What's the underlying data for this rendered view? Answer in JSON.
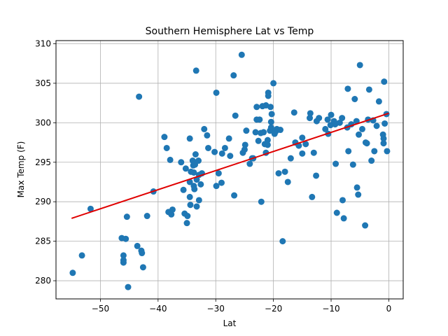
{
  "chart_data": {
    "type": "scatter",
    "title": "Southern Hemisphere Lat vs Temp",
    "xlabel": "Lat",
    "ylabel": "Max Temp (F)",
    "xlim": [
      -57.7,
      2.5
    ],
    "ylim": [
      277.7,
      310.4
    ],
    "xticks": [
      -50,
      -40,
      -30,
      -20,
      -10,
      0
    ],
    "yticks": [
      280,
      285,
      290,
      295,
      300,
      305,
      310
    ],
    "grid": true,
    "colors": {
      "points": "#1f77b4",
      "regression": "#e00000"
    },
    "regression": {
      "x": [
        -55,
        0
      ],
      "y": [
        287.9,
        301.2
      ]
    },
    "points": [
      [
        -54.8,
        281.0
      ],
      [
        -53.2,
        283.2
      ],
      [
        -51.7,
        289.1
      ],
      [
        -46.3,
        285.4
      ],
      [
        -46.0,
        283.2
      ],
      [
        -46.0,
        282.6
      ],
      [
        -46.0,
        282.3
      ],
      [
        -45.6,
        285.3
      ],
      [
        -45.4,
        288.1
      ],
      [
        -45.2,
        279.2
      ],
      [
        -43.6,
        284.4
      ],
      [
        -43.3,
        303.3
      ],
      [
        -42.9,
        283.8
      ],
      [
        -42.8,
        283.5
      ],
      [
        -42.6,
        281.7
      ],
      [
        -41.9,
        288.2
      ],
      [
        -40.8,
        291.3
      ],
      [
        -38.9,
        298.2
      ],
      [
        -38.5,
        296.8
      ],
      [
        -38.2,
        288.7
      ],
      [
        -37.9,
        295.3
      ],
      [
        -37.7,
        288.4
      ],
      [
        -37.5,
        289.0
      ],
      [
        -36.0,
        295.0
      ],
      [
        -35.6,
        291.5
      ],
      [
        -35.4,
        288.5
      ],
      [
        -35.2,
        294.2
      ],
      [
        -35.0,
        287.3
      ],
      [
        -34.9,
        288.2
      ],
      [
        -34.5,
        298.0
      ],
      [
        -34.5,
        292.5
      ],
      [
        -34.5,
        290.6
      ],
      [
        -34.4,
        289.6
      ],
      [
        -34.3,
        293.8
      ],
      [
        -34.0,
        295.2
      ],
      [
        -33.9,
        294.6
      ],
      [
        -33.8,
        293.7
      ],
      [
        -33.8,
        292.0
      ],
      [
        -33.7,
        291.6
      ],
      [
        -33.6,
        294.7
      ],
      [
        -33.5,
        296.0
      ],
      [
        -33.4,
        306.6
      ],
      [
        -33.3,
        292.8
      ],
      [
        -33.3,
        289.4
      ],
      [
        -33.0,
        295.2
      ],
      [
        -32.9,
        293.4
      ],
      [
        -32.9,
        290.2
      ],
      [
        -32.6,
        292.2
      ],
      [
        -32.4,
        293.6
      ],
      [
        -32.0,
        299.2
      ],
      [
        -31.5,
        298.4
      ],
      [
        -31.3,
        296.8
      ],
      [
        -30.2,
        296.3
      ],
      [
        -29.9,
        303.8
      ],
      [
        -29.9,
        292.0
      ],
      [
        -29.5,
        293.6
      ],
      [
        -29.0,
        292.4
      ],
      [
        -28.9,
        296.1
      ],
      [
        -28.4,
        296.8
      ],
      [
        -27.7,
        298.0
      ],
      [
        -27.5,
        295.8
      ],
      [
        -26.9,
        306.0
      ],
      [
        -26.8,
        290.8
      ],
      [
        -26.6,
        300.9
      ],
      [
        -25.5,
        308.6
      ],
      [
        -25.3,
        296.2
      ],
      [
        -25.0,
        296.6
      ],
      [
        -24.9,
        297.2
      ],
      [
        -24.7,
        299.0
      ],
      [
        -24.1,
        294.8
      ],
      [
        -23.7,
        295.5
      ],
      [
        -23.5,
        295.5
      ],
      [
        -23.1,
        298.8
      ],
      [
        -22.9,
        300.4
      ],
      [
        -22.9,
        302.0
      ],
      [
        -22.6,
        297.7
      ],
      [
        -22.4,
        300.4
      ],
      [
        -22.2,
        298.7
      ],
      [
        -22.1,
        290.0
      ],
      [
        -21.9,
        302.1
      ],
      [
        -21.7,
        298.8
      ],
      [
        -21.5,
        297.3
      ],
      [
        -21.3,
        302.2
      ],
      [
        -21.3,
        296.2
      ],
      [
        -21.0,
        297.8
      ],
      [
        -21.0,
        297.2
      ],
      [
        -20.9,
        303.8
      ],
      [
        -20.9,
        303.4
      ],
      [
        -20.6,
        299.0
      ],
      [
        -20.5,
        302.0
      ],
      [
        -20.4,
        300.1
      ],
      [
        -20.4,
        299.4
      ],
      [
        -20.3,
        301.1
      ],
      [
        -20.0,
        305.0
      ],
      [
        -19.8,
        298.6
      ],
      [
        -19.6,
        298.9
      ],
      [
        -19.4,
        299.2
      ],
      [
        -19.1,
        293.6
      ],
      [
        -18.8,
        299.1
      ],
      [
        -18.4,
        285.0
      ],
      [
        -18.0,
        293.8
      ],
      [
        -17.5,
        292.5
      ],
      [
        -17.0,
        295.5
      ],
      [
        -16.4,
        301.3
      ],
      [
        -16.2,
        297.5
      ],
      [
        -15.6,
        297.1
      ],
      [
        -15.0,
        298.1
      ],
      [
        -15.0,
        296.1
      ],
      [
        -14.4,
        297.3
      ],
      [
        -13.7,
        300.6
      ],
      [
        -13.6,
        301.2
      ],
      [
        -13.3,
        290.6
      ],
      [
        -13.0,
        296.2
      ],
      [
        -12.6,
        293.3
      ],
      [
        -12.5,
        300.2
      ],
      [
        -12.1,
        300.6
      ],
      [
        -11.0,
        299.2
      ],
      [
        -10.6,
        300.4
      ],
      [
        -10.5,
        298.6
      ],
      [
        -10.1,
        299.7
      ],
      [
        -10.0,
        301.0
      ],
      [
        -9.5,
        300.2
      ],
      [
        -9.3,
        299.8
      ],
      [
        -9.2,
        294.8
      ],
      [
        -9.0,
        288.6
      ],
      [
        -8.5,
        300.0
      ],
      [
        -8.1,
        300.6
      ],
      [
        -8.0,
        290.2
      ],
      [
        -7.8,
        287.9
      ],
      [
        -7.2,
        299.4
      ],
      [
        -7.1,
        304.3
      ],
      [
        -7.0,
        296.4
      ],
      [
        -6.5,
        299.8
      ],
      [
        -6.2,
        294.7
      ],
      [
        -5.9,
        303.0
      ],
      [
        -5.6,
        300.2
      ],
      [
        -5.5,
        291.8
      ],
      [
        -5.3,
        290.9
      ],
      [
        -5.2,
        298.5
      ],
      [
        -5.0,
        307.3
      ],
      [
        -4.6,
        299.2
      ],
      [
        -4.1,
        287.0
      ],
      [
        -4.0,
        297.5
      ],
      [
        -3.8,
        297.4
      ],
      [
        -3.6,
        300.4
      ],
      [
        -3.4,
        304.2
      ],
      [
        -3.0,
        295.2
      ],
      [
        -2.7,
        300.3
      ],
      [
        -2.5,
        296.4
      ],
      [
        -2.1,
        299.6
      ],
      [
        -1.7,
        302.7
      ],
      [
        -1.0,
        298.5
      ],
      [
        -0.9,
        297.4
      ],
      [
        -0.9,
        298.0
      ],
      [
        -0.8,
        305.2
      ],
      [
        -0.7,
        299.9
      ],
      [
        -0.4,
        301.1
      ],
      [
        -0.3,
        296.4
      ]
    ]
  }
}
